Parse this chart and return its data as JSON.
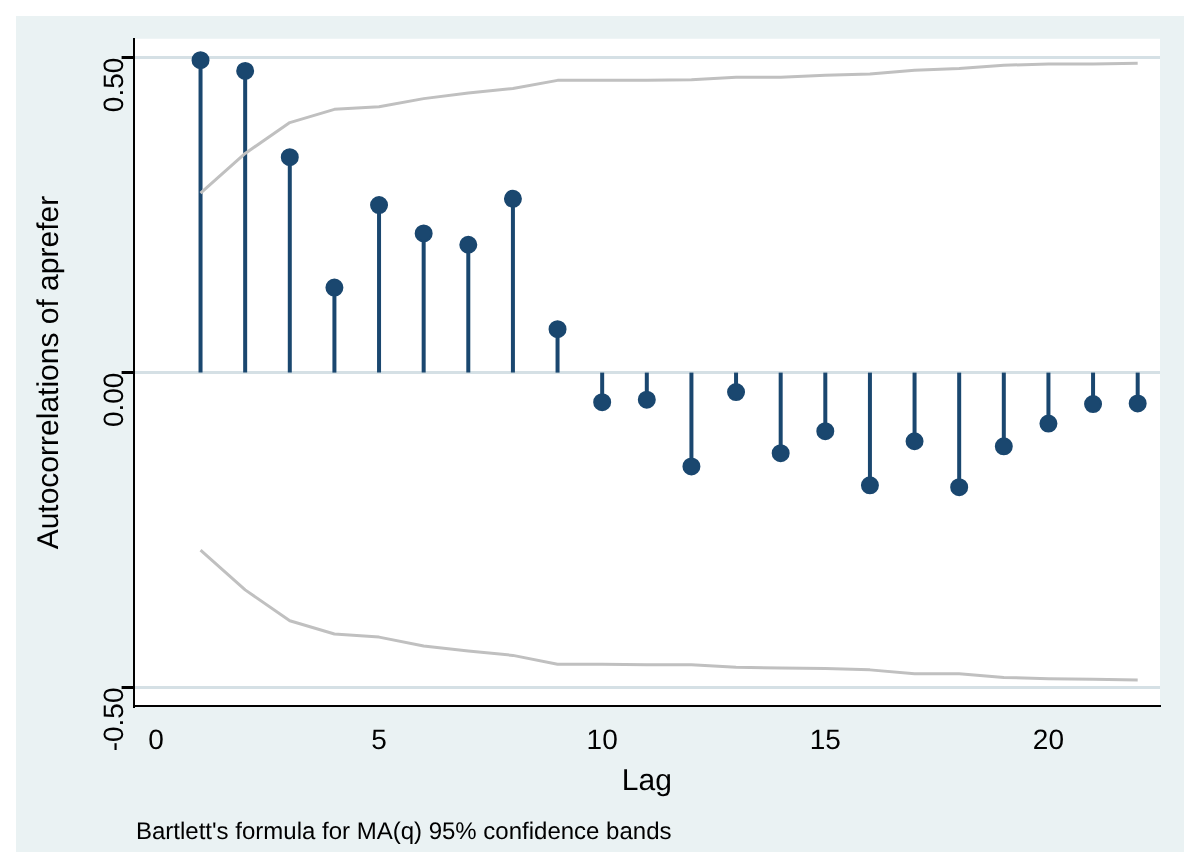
{
  "chart_data": {
    "type": "lollipop",
    "xlabel": "Lag",
    "ylabel": "Autocorrelations of aprefer",
    "annotations": [
      "Bartlett's formula for MA(q) 95% confidence bands"
    ],
    "x": [
      1,
      2,
      3,
      4,
      5,
      6,
      7,
      8,
      9,
      10,
      11,
      12,
      13,
      14,
      15,
      16,
      17,
      18,
      19,
      20,
      21,
      22
    ],
    "series": [
      {
        "color": "#1a476f",
        "marker": "circle",
        "values": [
          0.496,
          0.479,
          0.342,
          0.135,
          0.266,
          0.221,
          0.203,
          0.276,
          0.069,
          -0.047,
          -0.043,
          -0.149,
          -0.031,
          -0.128,
          -0.093,
          -0.179,
          -0.109,
          -0.182,
          -0.117,
          -0.081,
          -0.05,
          -0.049
        ]
      },
      {
        "type": "line",
        "color": "#c0c0c0",
        "values": [
          0.285,
          0.348,
          0.397,
          0.418,
          0.422,
          0.435,
          0.444,
          0.451,
          0.464,
          0.464,
          0.464,
          0.465,
          0.469,
          0.469,
          0.472,
          0.474,
          0.48,
          0.483,
          0.488,
          0.49,
          0.49,
          0.491
        ]
      },
      {
        "type": "line",
        "color": "#c0c0c0",
        "values": [
          -0.282,
          -0.345,
          -0.394,
          -0.415,
          -0.42,
          -0.434,
          -0.442,
          -0.449,
          -0.463,
          -0.463,
          -0.464,
          -0.464,
          -0.468,
          -0.469,
          -0.47,
          -0.472,
          -0.478,
          -0.478,
          -0.484,
          -0.486,
          -0.487,
          -0.488
        ]
      }
    ],
    "xlim": [
      -0.5,
      22.5
    ],
    "xticks": [
      0,
      5,
      10,
      15,
      20
    ],
    "ylim": [
      -0.53,
      0.53
    ],
    "yticks": [
      {
        "value": -0.5,
        "label": "-0.50"
      },
      {
        "value": 0,
        "label": "0.00"
      },
      {
        "value": 0.5,
        "label": "0.50"
      }
    ],
    "grid": "y"
  }
}
